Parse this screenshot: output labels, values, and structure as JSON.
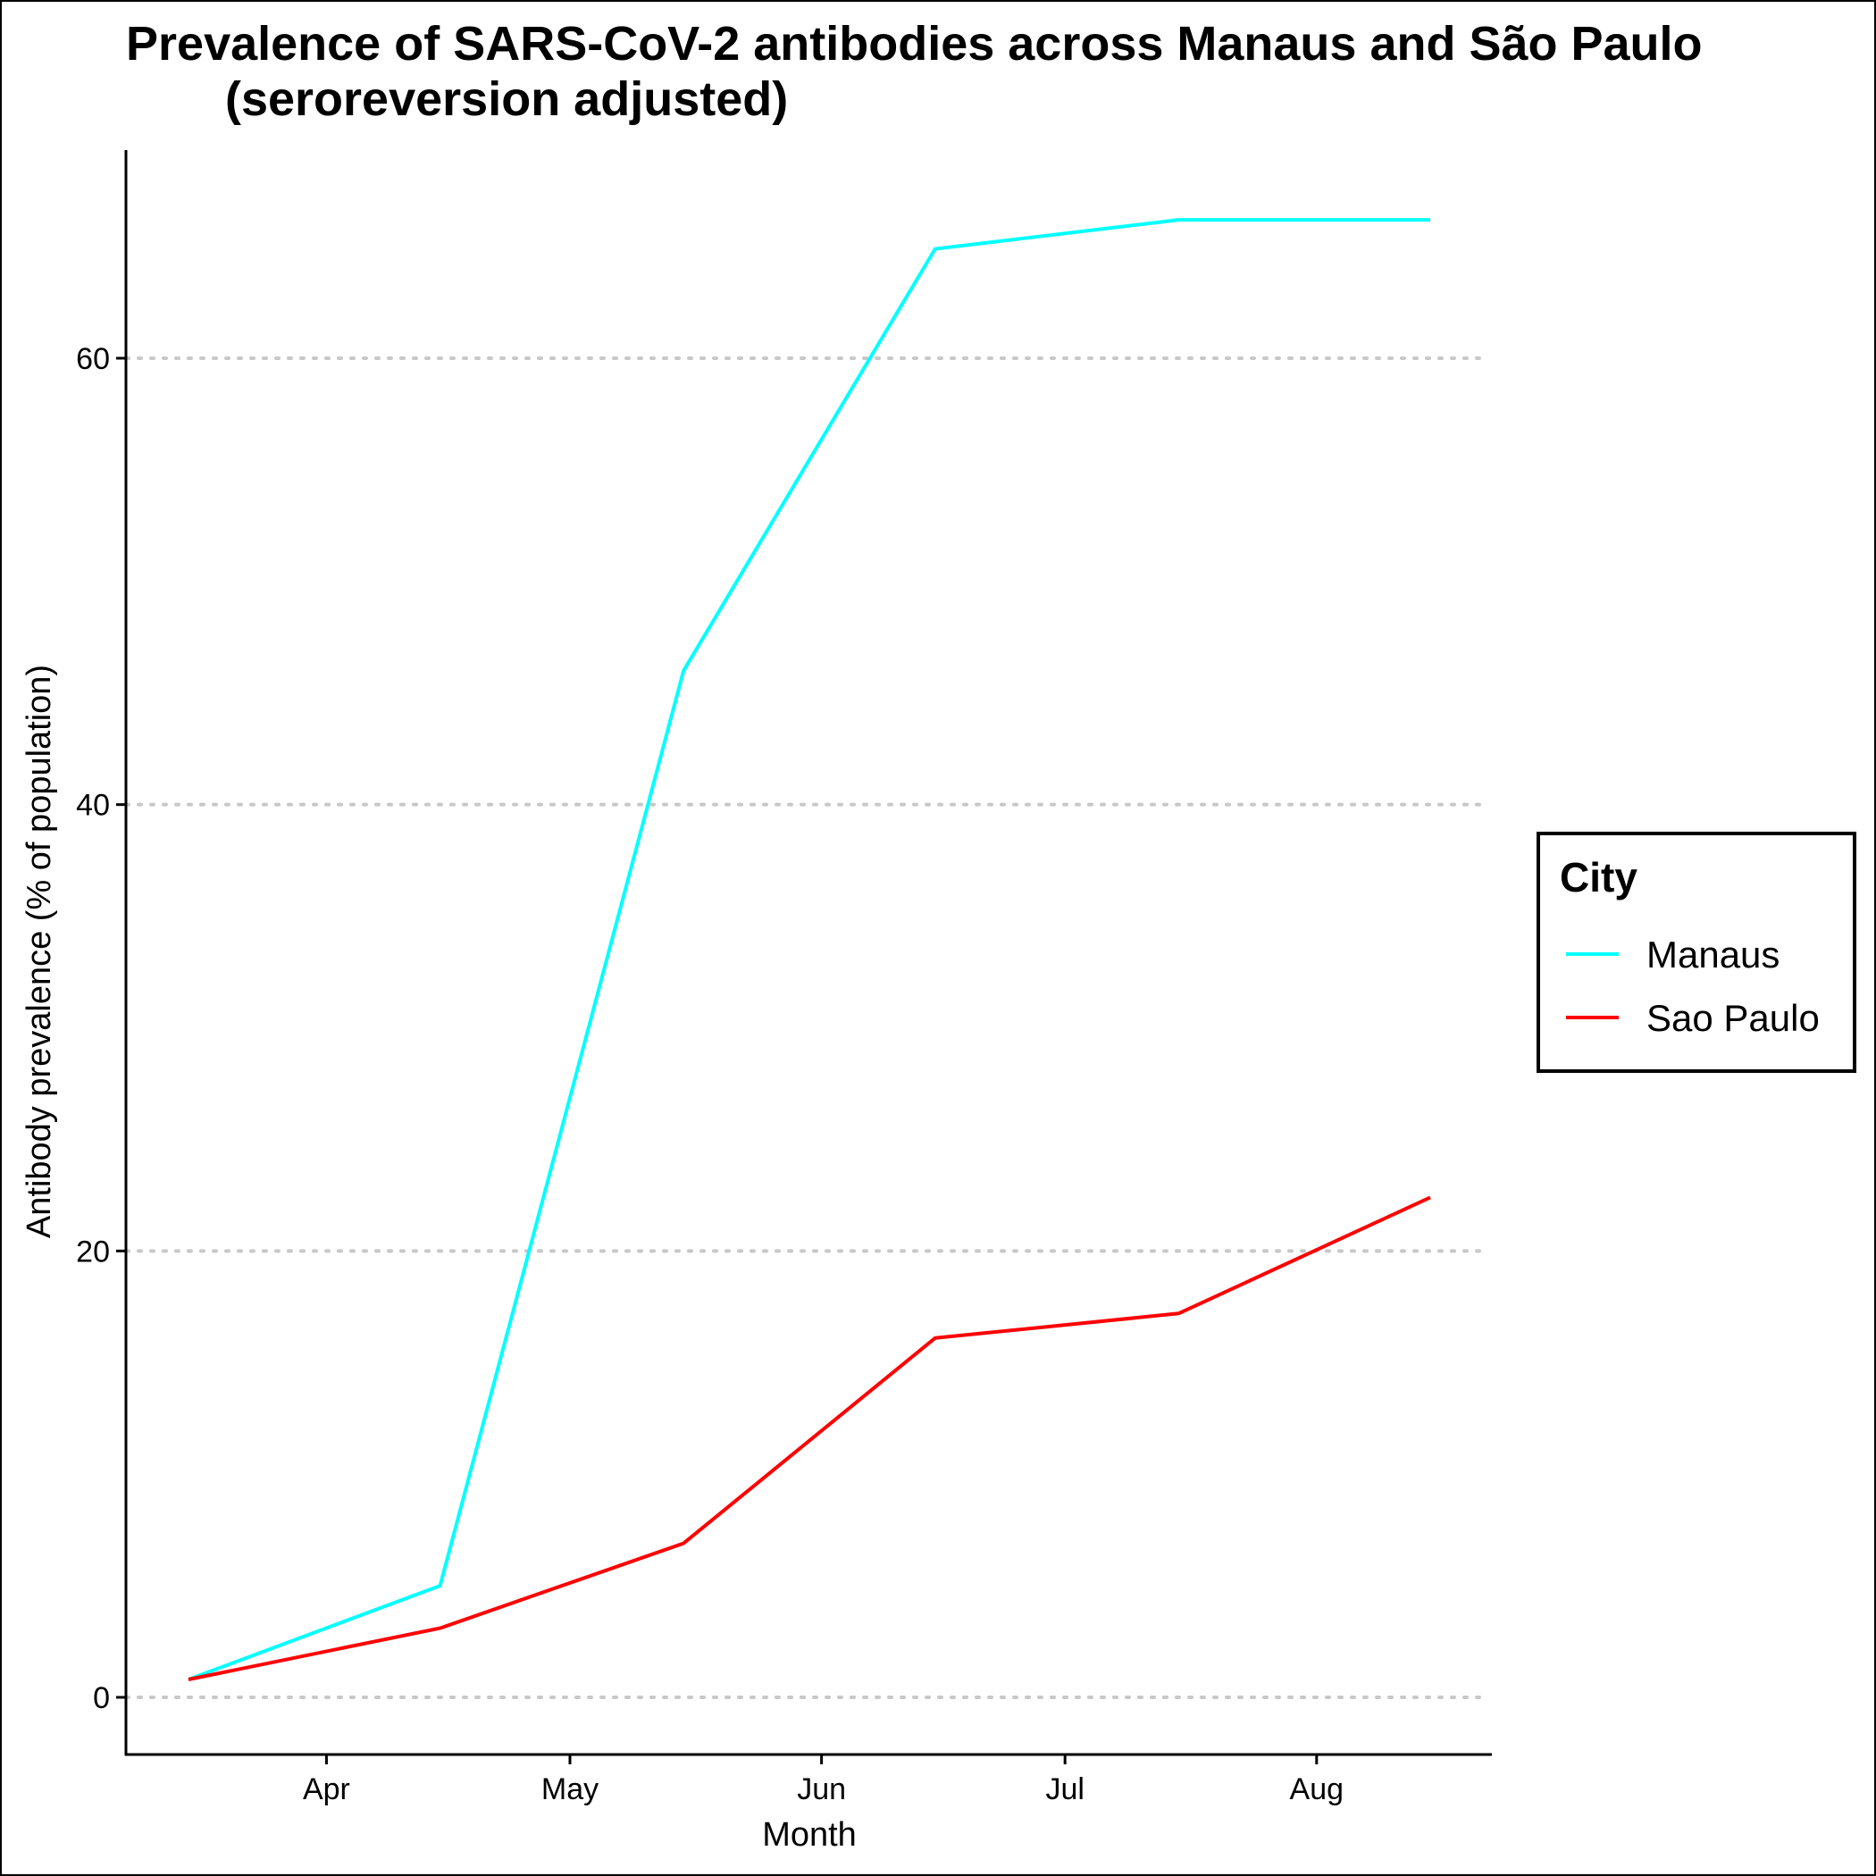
{
  "chart_data": {
    "type": "line",
    "title_line1": "Prevalence of SARS-CoV-2 antibodies across Manaus and São Paulo",
    "title_line2": "(seroreversion adjusted)",
    "xlabel": "Month",
    "ylabel": "Antibody prevalence (% of population)",
    "x_ticks": [
      "Apr",
      "May",
      "Jun",
      "Jul",
      "Aug"
    ],
    "y_ticks": [
      0,
      20,
      40,
      60
    ],
    "ylim": [
      -2.6,
      69.3
    ],
    "grid": "horizontal dotted at y ticks",
    "x": [
      "2020-03-15",
      "2020-04-15",
      "2020-05-15",
      "2020-06-15",
      "2020-07-15",
      "2020-08-15"
    ],
    "series": [
      {
        "name": "Manaus",
        "color": "#00FFFF",
        "values": [
          0.8,
          5.0,
          46.0,
          64.9,
          66.2,
          66.2
        ]
      },
      {
        "name": "Sao Paulo",
        "color": "#FF0000",
        "values": [
          0.8,
          3.1,
          6.9,
          16.1,
          17.2,
          22.4
        ]
      }
    ],
    "legend": {
      "title": "City",
      "position": "right"
    }
  }
}
